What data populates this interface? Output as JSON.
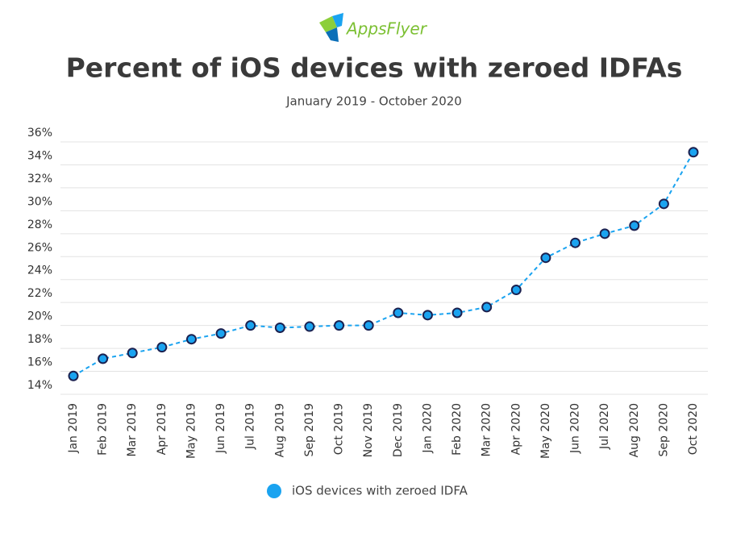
{
  "brand": "AppsFlyer",
  "chart_data": {
    "type": "line",
    "title": "Percent of iOS devices with zeroed IDFAs",
    "subtitle": "January 2019 - October 2020",
    "categories": [
      "Jan 2019",
      "Feb 2019",
      "Mar 2019",
      "Apr 2019",
      "May 2019",
      "Jun 2019",
      "Jul 2019",
      "Aug 2019",
      "Sep 2019",
      "Oct 2019",
      "Nov 2019",
      "Dec 2019",
      "Jan 2020",
      "Feb 2020",
      "Mar 2020",
      "Apr 2020",
      "May 2020",
      "Jun 2020",
      "Jul 2020",
      "Aug 2020",
      "Sep 2020",
      "Oct 2020"
    ],
    "series": [
      {
        "name": "iOS devices with zeroed IDFA",
        "color": "#1aa3f0",
        "values": [
          15.6,
          17.1,
          17.6,
          18.1,
          18.8,
          19.3,
          20.0,
          19.8,
          19.9,
          20.0,
          20.0,
          21.1,
          20.9,
          21.1,
          21.6,
          23.1,
          25.9,
          27.2,
          28.0,
          28.7,
          30.6,
          35.1
        ]
      }
    ],
    "ylim": [
      14,
      36
    ],
    "yticks": [
      {
        "value": 14,
        "label": "14%"
      },
      {
        "value": 16,
        "label": "16%"
      },
      {
        "value": 18,
        "label": "18%"
      },
      {
        "value": 20,
        "label": "20%"
      },
      {
        "value": 22,
        "label": "22%"
      },
      {
        "value": 24,
        "label": "24%"
      },
      {
        "value": 26,
        "label": "26%"
      },
      {
        "value": 28,
        "label": "28%"
      },
      {
        "value": 30,
        "label": "30%"
      },
      {
        "value": 32,
        "label": "32%"
      },
      {
        "value": 34,
        "label": "34%"
      },
      {
        "value": 36,
        "label": "36%"
      }
    ],
    "grid": true,
    "legend": "bottom"
  }
}
